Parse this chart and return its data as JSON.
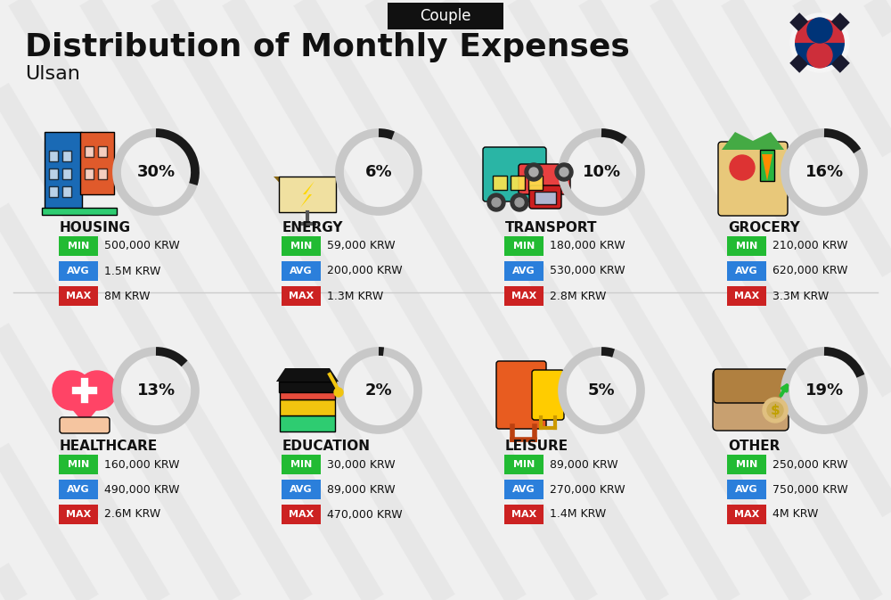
{
  "title": "Distribution of Monthly Expenses",
  "subtitle": "Couple",
  "city": "Ulsan",
  "bg_color": "#f0f0f0",
  "categories": [
    {
      "name": "HOUSING",
      "pct": 30,
      "min": "500,000 KRW",
      "avg": "1.5M KRW",
      "max": "8M KRW",
      "row": 0,
      "col": 0
    },
    {
      "name": "ENERGY",
      "pct": 6,
      "min": "59,000 KRW",
      "avg": "200,000 KRW",
      "max": "1.3M KRW",
      "row": 0,
      "col": 1
    },
    {
      "name": "TRANSPORT",
      "pct": 10,
      "min": "180,000 KRW",
      "avg": "530,000 KRW",
      "max": "2.8M KRW",
      "row": 0,
      "col": 2
    },
    {
      "name": "GROCERY",
      "pct": 16,
      "min": "210,000 KRW",
      "avg": "620,000 KRW",
      "max": "3.3M KRW",
      "row": 0,
      "col": 3
    },
    {
      "name": "HEALTHCARE",
      "pct": 13,
      "min": "160,000 KRW",
      "avg": "490,000 KRW",
      "max": "2.6M KRW",
      "row": 1,
      "col": 0
    },
    {
      "name": "EDUCATION",
      "pct": 2,
      "min": "30,000 KRW",
      "avg": "89,000 KRW",
      "max": "470,000 KRW",
      "row": 1,
      "col": 1
    },
    {
      "name": "LEISURE",
      "pct": 5,
      "min": "89,000 KRW",
      "avg": "270,000 KRW",
      "max": "1.4M KRW",
      "row": 1,
      "col": 2
    },
    {
      "name": "OTHER",
      "pct": 19,
      "min": "250,000 KRW",
      "avg": "750,000 KRW",
      "max": "4M KRW",
      "row": 1,
      "col": 3
    }
  ],
  "min_color": "#22bb33",
  "avg_color": "#2b7fdb",
  "max_color": "#cc2222",
  "text_color": "#111111",
  "circle_dark_color": "#1a1a1a",
  "circle_light_color": "#c8c8c8",
  "stripe_color": "#e0e0e0",
  "divider_color": "#cccccc"
}
